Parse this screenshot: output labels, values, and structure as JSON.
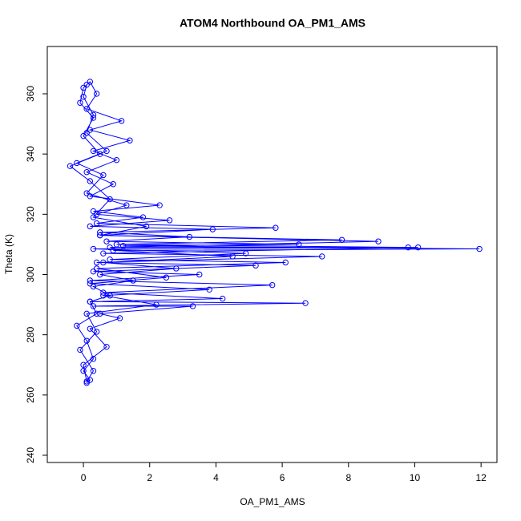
{
  "chart_data": {
    "type": "line",
    "title": "ATOM4 Northbound OA_PM1_AMS",
    "x_label": "OA_PM1_AMS",
    "y_label": "Theta (K)",
    "color": "#0000ff",
    "markers": "open-circle",
    "xlim": [
      -1.09,
      12.48
    ],
    "ylim": [
      237.6,
      375.7
    ],
    "xticks": [
      0,
      2,
      4,
      6,
      8,
      10,
      12
    ],
    "yticks": [
      240,
      260,
      280,
      300,
      320,
      340,
      360
    ],
    "x": [
      0.1,
      0.2,
      0.0,
      0.3,
      0.1,
      -0.2,
      0.4,
      0.2,
      0.8,
      0.3,
      1.5,
      0.5,
      2.8,
      0.6,
      4.5,
      0.9,
      11.95,
      1.2,
      6.5,
      0.7,
      3.2,
      0.5,
      5.8,
      0.4,
      1.8,
      0.3,
      2.3,
      0.2,
      0.9,
      0.1,
      1.0,
      0.3,
      1.4,
      0.2,
      1.15,
      0.1,
      0.4,
      0.2,
      0.0,
      -0.1,
      0.3,
      0.0,
      0.5,
      -0.4,
      0.2,
      0.8,
      0.3,
      1.9,
      0.5,
      8.9,
      0.8,
      10.1,
      0.6,
      7.2,
      0.4,
      5.2,
      0.3,
      3.5,
      0.2,
      5.7,
      0.6,
      4.2,
      0.2,
      6.7,
      0.3,
      3.3,
      0.5,
      1.1,
      0.2,
      0.7,
      0.0,
      0.1,
      0.3,
      -0.1,
      0.4,
      0.1,
      2.2,
      0.6,
      3.8,
      0.2,
      2.5,
      0.4,
      6.1,
      0.8,
      4.9,
      0.3,
      9.8,
      1.0,
      7.8,
      0.5,
      3.9,
      0.2,
      2.6,
      0.4,
      1.3,
      0.1,
      0.6,
      -0.2,
      0.7,
      0.1,
      0.3,
      0.0,
      0.1
    ],
    "values": [
      264,
      265,
      268,
      272,
      278,
      283,
      287,
      291,
      293,
      296,
      298,
      300,
      302,
      304,
      306,
      308,
      308.5,
      309.5,
      310,
      311,
      312.5,
      314,
      315.5,
      317,
      319,
      321,
      323,
      326,
      330,
      334,
      338,
      341,
      344.5,
      348,
      351,
      355,
      360,
      364,
      362,
      357,
      352,
      346,
      340,
      336,
      331,
      325,
      319,
      316,
      313,
      311,
      309,
      309,
      307,
      306,
      304,
      303,
      301,
      300,
      298,
      296.5,
      294,
      292,
      291,
      290.5,
      289.5,
      289.5,
      287,
      285.5,
      282,
      276,
      270,
      264.5,
      268,
      275,
      281,
      287,
      290,
      293,
      295,
      297,
      299,
      302,
      304,
      305,
      307,
      308.5,
      309,
      310,
      311.5,
      313,
      315,
      316,
      318,
      320,
      323,
      327,
      333,
      337,
      341,
      347,
      353,
      359,
      363
    ]
  }
}
